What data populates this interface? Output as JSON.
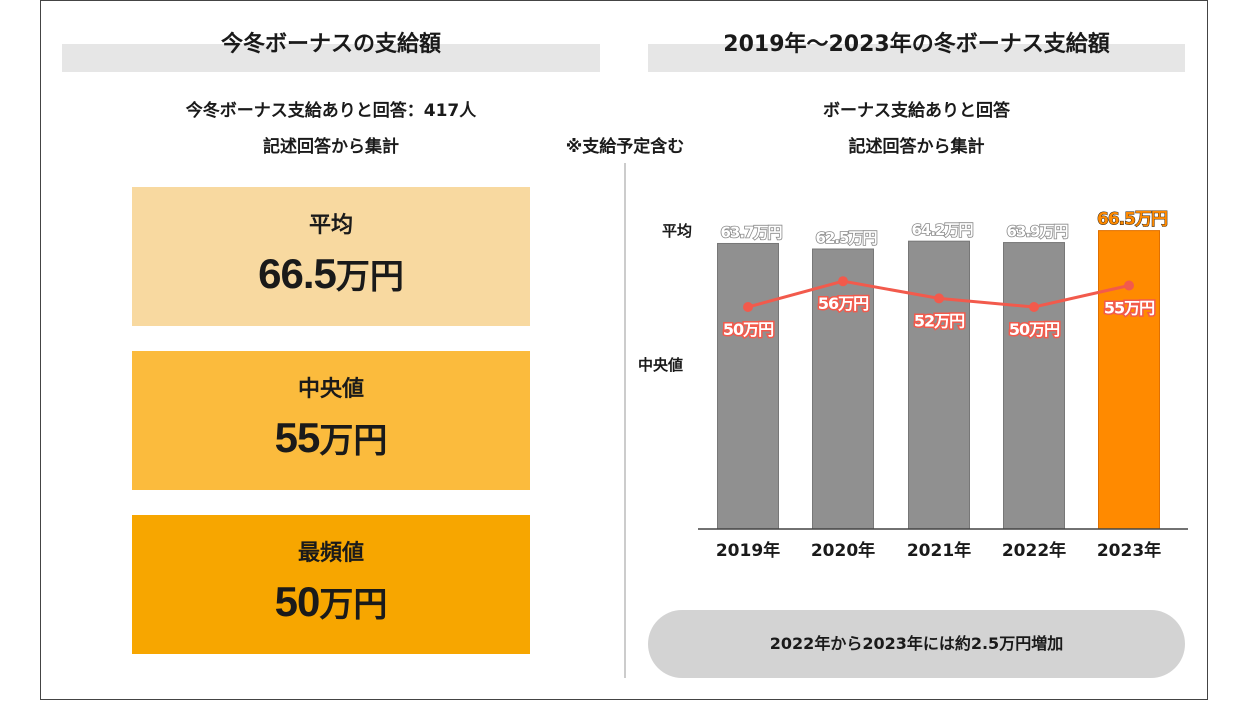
{
  "left": {
    "header": "今冬ボーナスの支給額",
    "subtitle_line1": "今冬ボーナス支給ありと回答：417人",
    "subtitle_line2": "記述回答から集計",
    "stats": [
      {
        "label": "平均",
        "value": "66.5",
        "unit": "万円",
        "color": "#f8d9a0"
      },
      {
        "label": "中央値",
        "value": "55",
        "unit": "万円",
        "color": "#fbbb3d"
      },
      {
        "label": "最頻値",
        "value": "50",
        "unit": "万円",
        "color": "#f7a600"
      }
    ]
  },
  "center_note": "※支給予定含む",
  "right": {
    "header": "2019年～2023年の冬ボーナス支給額",
    "subtitle_line1": "ボーナス支給ありと回答",
    "subtitle_line2": "記述回答から集計",
    "bar_axis_label": "平均",
    "line_axis_label": "中央値",
    "footer_note": "2022年から2023年には約2.5万円増加"
  },
  "chart_data": {
    "type": "bar",
    "categories": [
      "2019年",
      "2020年",
      "2021年",
      "2022年",
      "2023年"
    ],
    "series": [
      {
        "name": "平均",
        "kind": "bar",
        "values": [
          63.7,
          62.5,
          64.2,
          63.9,
          66.5
        ],
        "labels": [
          "63.7万円",
          "62.5万円",
          "64.2万円",
          "63.9万円",
          "66.5万円"
        ]
      },
      {
        "name": "中央値",
        "kind": "line",
        "values": [
          50,
          56,
          52,
          50,
          55
        ],
        "labels": [
          "50万円",
          "56万円",
          "52万円",
          "50万円",
          "55万円"
        ]
      }
    ],
    "colors": {
      "bar": "#909090",
      "bar_highlight": "#ff8a00",
      "line": "#f25a4c"
    },
    "highlight_index": 4
  }
}
